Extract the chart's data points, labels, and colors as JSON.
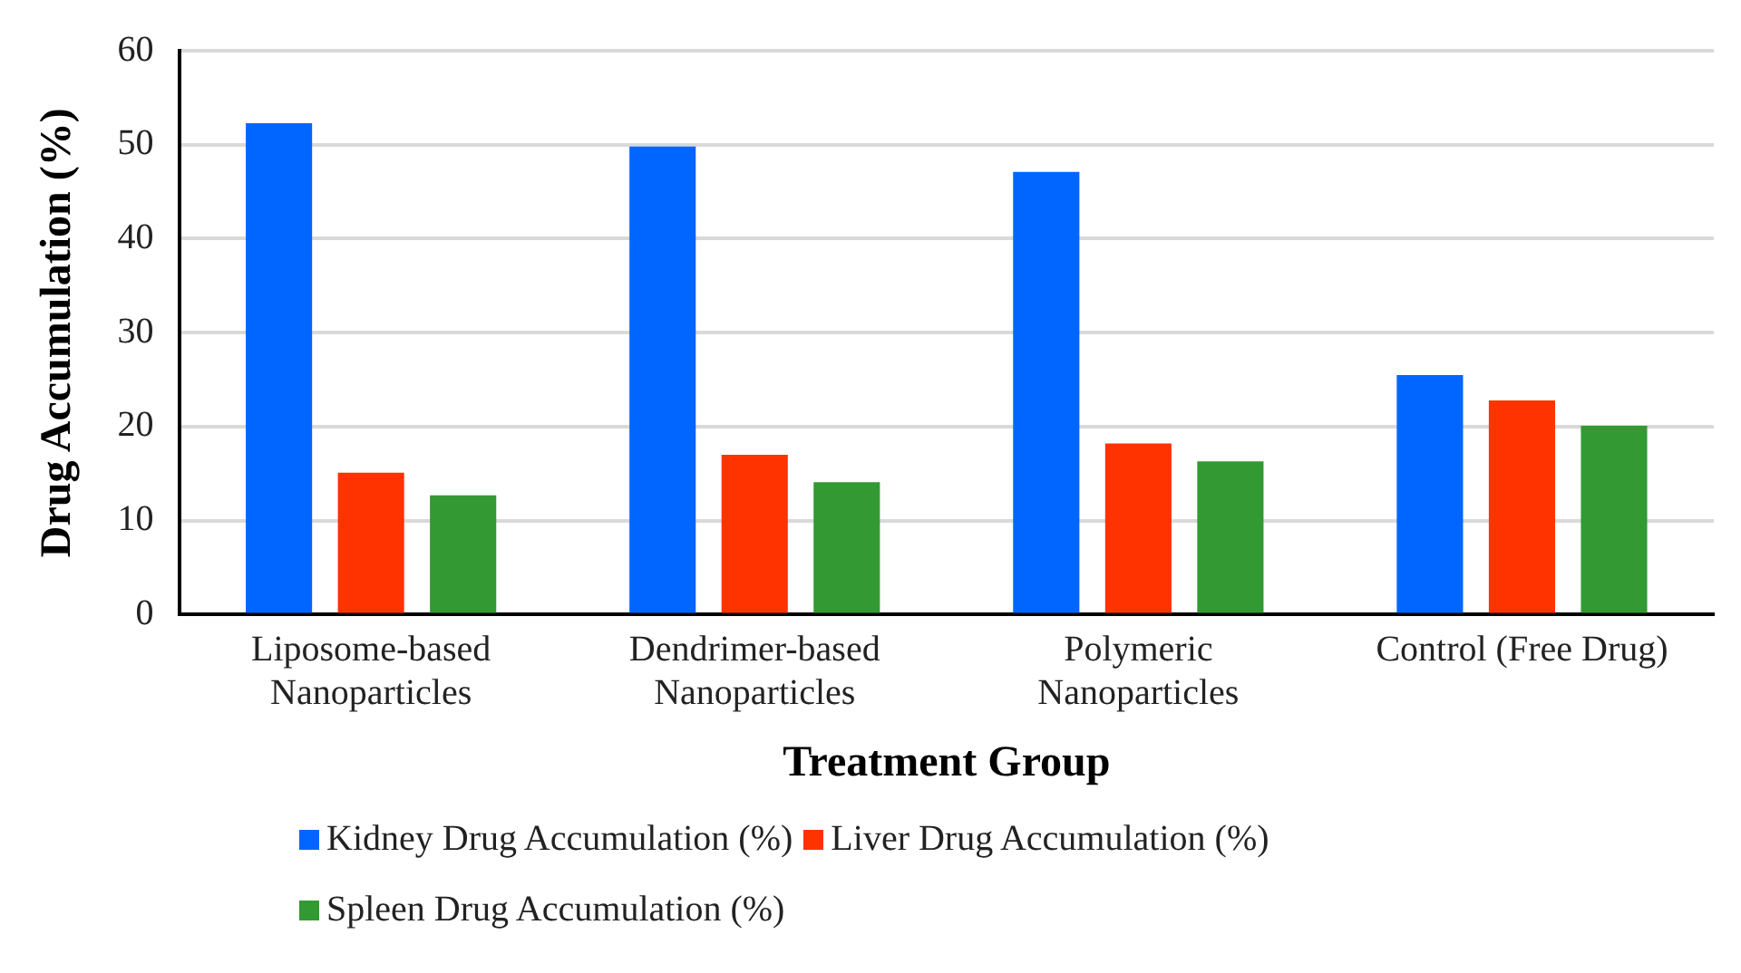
{
  "chart_data": {
    "type": "bar",
    "xlabel": "Treatment Group",
    "ylabel": "Drug Accumulation (%)",
    "categories": [
      "Liposome-based Nanoparticles",
      "Dendrimer-based Nanoparticles",
      "Polymeric Nanoparticles",
      "Control (Free Drug)"
    ],
    "series": [
      {
        "name": "Kidney Drug Accumulation (%)",
        "color": "#0066ff",
        "values": [
          52.3,
          49.8,
          47.1,
          25.5
        ]
      },
      {
        "name": "Liver Drug Accumulation (%)",
        "color": "#ff3300",
        "values": [
          15.1,
          17.0,
          18.2,
          22.8
        ]
      },
      {
        "name": "Spleen Drug Accumulation (%)",
        "color": "#339933",
        "values": [
          12.7,
          14.1,
          16.3,
          20.1
        ]
      }
    ],
    "ylim": [
      0,
      60
    ],
    "yticks": [
      0,
      10,
      20,
      30,
      40,
      50,
      60
    ],
    "grid": "y",
    "legend": "bottom"
  }
}
